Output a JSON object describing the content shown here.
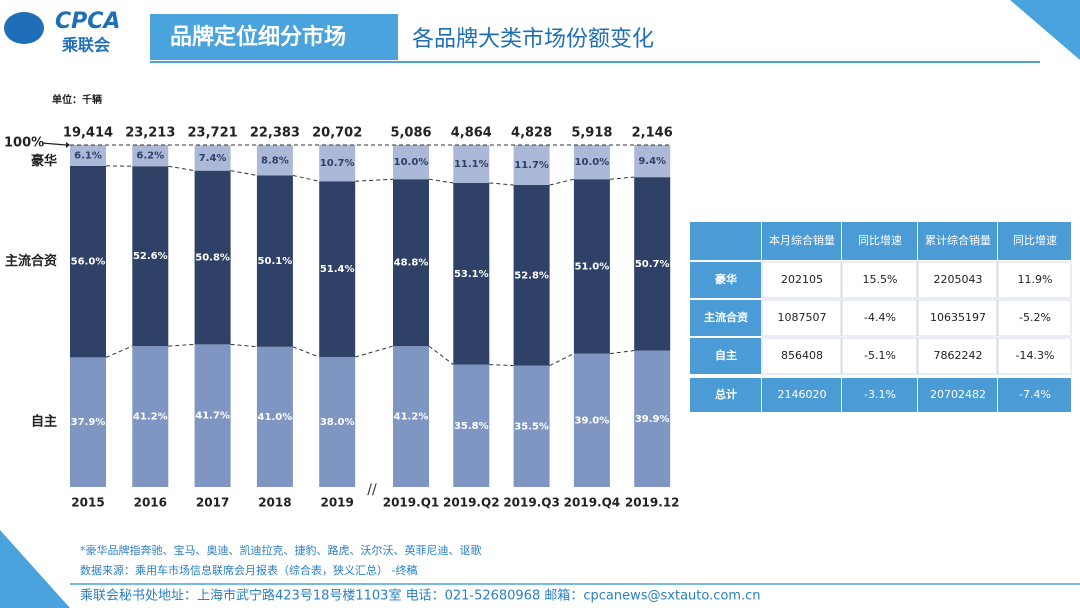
{
  "header": {
    "logo": "CPCA",
    "logo_cn": "乘联会",
    "title": "品牌定位细分市场",
    "subtitle": "各品牌大类市场份额变化"
  },
  "chart_data": {
    "type": "stacked_bar",
    "unit": "单位：千辆",
    "categories": [
      "2015",
      "2016",
      "2017",
      "2018",
      "2019",
      "2019.Q1",
      "2019.Q2",
      "2019.Q3",
      "2019.Q4",
      "2019.12"
    ],
    "ylim": [
      0,
      100
    ],
    "yticks": [
      {
        "value": 100,
        "label": "100%"
      }
    ],
    "totals": {
      "values": [
        19414,
        23213,
        23721,
        22383,
        20702,
        5086,
        4864,
        4828,
        5918,
        2146
      ],
      "value_labels": [
        "19,414",
        "23,213",
        "23,721",
        "22,383",
        "20,702",
        "5,086",
        "4,864",
        "4,828",
        "5,918",
        "2,146"
      ]
    },
    "series": [
      {
        "name": "自主",
        "color": "#7f95c2",
        "values": [
          37.9,
          41.2,
          41.7,
          41.0,
          38.0,
          41.2,
          35.8,
          35.5,
          39.0,
          39.9
        ],
        "value_labels": [
          "37.9%",
          "41.2%",
          "41.7%",
          "41.0%",
          "38.0%",
          "41.2%",
          "35.8%",
          "35.5%",
          "39.0%",
          "39.9%"
        ]
      },
      {
        "name": "主流合资",
        "color": "#2f4166",
        "values": [
          56.0,
          52.6,
          50.8,
          50.1,
          51.4,
          48.8,
          53.1,
          52.8,
          51.0,
          50.7
        ],
        "value_labels": [
          "56.0%",
          "52.6%",
          "50.8%",
          "50.1%",
          "51.4%",
          "48.8%",
          "53.1%",
          "52.8%",
          "51.0%",
          "50.7%"
        ]
      },
      {
        "name": "豪华",
        "color": "#abb8d7",
        "values": [
          6.1,
          6.2,
          7.4,
          8.8,
          10.7,
          10.0,
          11.1,
          11.7,
          10.0,
          9.4
        ],
        "value_labels": [
          "6.1%",
          "6.2%",
          "7.4%",
          "8.8%",
          "10.7%",
          "10.0%",
          "11.1%",
          "11.7%",
          "10.0%",
          "9.4%"
        ]
      }
    ]
  },
  "table": {
    "columns": [
      "本月综合销量",
      "同比增速",
      "累计综合销量",
      "同比增速"
    ],
    "rows": [
      [
        "豪华",
        202105,
        "15.5%",
        2205043,
        "11.9%"
      ],
      [
        "主流合资",
        1087507,
        "-4.4%",
        10635197,
        "-5.2%"
      ],
      [
        "自主",
        856408,
        "-5.1%",
        7862242,
        "-14.3%"
      ],
      [
        "总计",
        2146020,
        "-3.1%",
        20702482,
        "-7.4%"
      ]
    ]
  },
  "notes": [
    "*豪华品牌指奔驰、宝马、奥迪、凯迪拉克、捷豹、路虎、沃尔沃、英菲尼迪、讴歌",
    "数据来源：乘用车市场信息联席会月报表（综合表，狭义汇总） -终稿"
  ],
  "footer": "乘联会秘书处地址：上海市武宁路423号18号楼1103室 电话：021-52680968 邮箱：cpcanews@sxtauto.com.cn"
}
